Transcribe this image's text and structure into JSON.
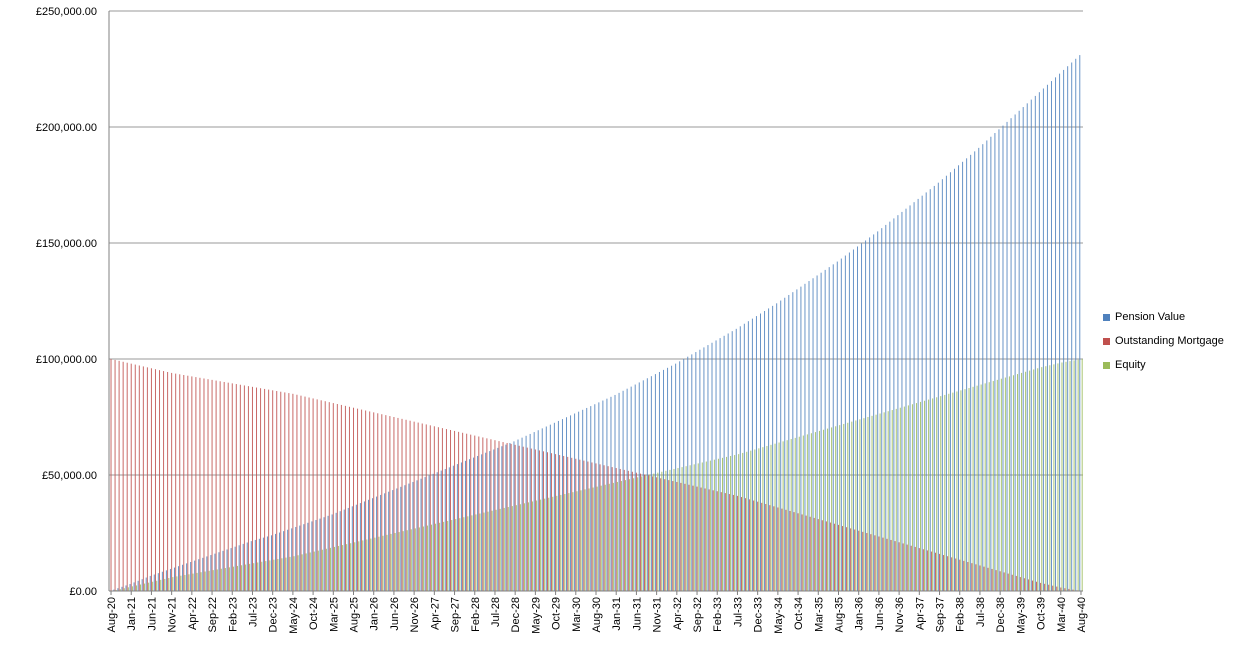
{
  "chart_data": {
    "type": "bar",
    "title": "",
    "xlabel": "",
    "ylabel": "",
    "ylim": [
      0,
      250000
    ],
    "yticks": [
      "£0.00",
      "£50,000.00",
      "£100,000.00",
      "£150,000.00",
      "£200,000.00",
      "£250,000.00"
    ],
    "grid": true,
    "legend_position": "right",
    "start_month": "2020-08",
    "end_month": "2040-08",
    "x_tick_labels": [
      "Aug-20",
      "Jan-21",
      "Jun-21",
      "Nov-21",
      "Apr-22",
      "Sep-22",
      "Feb-23",
      "Jul-23",
      "Dec-23",
      "May-24",
      "Oct-24",
      "Mar-25",
      "Aug-25",
      "Jan-26",
      "Jun-26",
      "Nov-26",
      "Apr-27",
      "Sep-27",
      "Feb-28",
      "Jul-28",
      "Dec-28",
      "May-29",
      "Oct-29",
      "Mar-30",
      "Aug-30",
      "Jan-31",
      "Jun-31",
      "Nov-31",
      "Apr-32",
      "Sep-32",
      "Feb-33",
      "Jul-33",
      "Dec-33",
      "May-34",
      "Oct-34",
      "Mar-35",
      "Aug-35",
      "Jan-36",
      "Jun-36",
      "Nov-36",
      "Apr-37",
      "Sep-37",
      "Feb-38",
      "Jul-38",
      "Dec-38",
      "May-39",
      "Oct-39",
      "Mar-40",
      "Aug-40"
    ],
    "series": [
      {
        "name": "Pension Value",
        "color": "#4F81BD",
        "points": [
          [
            "Aug-20",
            0
          ],
          [
            "Jan-21",
            3000
          ],
          [
            "Jun-21",
            6500
          ],
          [
            "Nov-21",
            9500
          ],
          [
            "Apr-22",
            12500
          ],
          [
            "Sep-22",
            15500
          ],
          [
            "Feb-23",
            18500
          ],
          [
            "Jul-23",
            21500
          ],
          [
            "Dec-23",
            24000
          ],
          [
            "May-24",
            27000
          ],
          [
            "Oct-24",
            30000
          ],
          [
            "Mar-25",
            33000
          ],
          [
            "Aug-25",
            36500
          ],
          [
            "Jan-26",
            40000
          ],
          [
            "Jun-26",
            43500
          ],
          [
            "Nov-26",
            47000
          ],
          [
            "Apr-27",
            50500
          ],
          [
            "Sep-27",
            54000
          ],
          [
            "Feb-28",
            57500
          ],
          [
            "Jul-28",
            61000
          ],
          [
            "Dec-28",
            64500
          ],
          [
            "May-29",
            68500
          ],
          [
            "Oct-29",
            72500
          ],
          [
            "Mar-30",
            76500
          ],
          [
            "Aug-30",
            80500
          ],
          [
            "Jan-31",
            84500
          ],
          [
            "Jun-31",
            89000
          ],
          [
            "Nov-31",
            93500
          ],
          [
            "Apr-32",
            98000
          ],
          [
            "Sep-32",
            103000
          ],
          [
            "Feb-33",
            108000
          ],
          [
            "Jul-33",
            113000
          ],
          [
            "Dec-33",
            118500
          ],
          [
            "May-34",
            124000
          ],
          [
            "Oct-34",
            130000
          ],
          [
            "Mar-35",
            136000
          ],
          [
            "Aug-35",
            142000
          ],
          [
            "Jan-36",
            148500
          ],
          [
            "Jun-36",
            155000
          ],
          [
            "Nov-36",
            162000
          ],
          [
            "Apr-37",
            169000
          ],
          [
            "Sep-37",
            176000
          ],
          [
            "Feb-38",
            183500
          ],
          [
            "Jul-38",
            191000
          ],
          [
            "Dec-38",
            199000
          ],
          [
            "May-39",
            207000
          ],
          [
            "Oct-39",
            215000
          ],
          [
            "Mar-40",
            223000
          ],
          [
            "Aug-40",
            231000
          ]
        ]
      },
      {
        "name": "Outstanding Mortgage",
        "color": "#C0504D",
        "points": [
          [
            "Aug-20",
            100000
          ],
          [
            "Jan-21",
            98000
          ],
          [
            "Jun-21",
            96000
          ],
          [
            "Nov-21",
            94000
          ],
          [
            "Apr-22",
            92500
          ],
          [
            "Sep-22",
            91000
          ],
          [
            "Feb-23",
            89500
          ],
          [
            "Jul-23",
            88000
          ],
          [
            "Dec-23",
            86500
          ],
          [
            "May-24",
            85000
          ],
          [
            "Oct-24",
            83000
          ],
          [
            "Mar-25",
            81000
          ],
          [
            "Aug-25",
            79000
          ],
          [
            "Jan-26",
            77000
          ],
          [
            "Jun-26",
            75000
          ],
          [
            "Nov-26",
            73000
          ],
          [
            "Apr-27",
            71000
          ],
          [
            "Sep-27",
            69000
          ],
          [
            "Feb-28",
            67000
          ],
          [
            "Jul-28",
            65000
          ],
          [
            "Dec-28",
            63000
          ],
          [
            "May-29",
            61000
          ],
          [
            "Oct-29",
            59000
          ],
          [
            "Mar-30",
            57000
          ],
          [
            "Aug-30",
            55000
          ],
          [
            "Jan-31",
            53000
          ],
          [
            "Jun-31",
            51000
          ],
          [
            "Nov-31",
            49000
          ],
          [
            "Apr-32",
            47000
          ],
          [
            "Sep-32",
            45000
          ],
          [
            "Feb-33",
            43000
          ],
          [
            "Jul-33",
            41000
          ],
          [
            "Dec-33",
            38500
          ],
          [
            "May-34",
            36000
          ],
          [
            "Oct-34",
            33500
          ],
          [
            "Mar-35",
            31000
          ],
          [
            "Aug-35",
            28500
          ],
          [
            "Jan-36",
            26000
          ],
          [
            "Jun-36",
            23500
          ],
          [
            "Nov-36",
            21000
          ],
          [
            "Apr-37",
            18500
          ],
          [
            "Sep-37",
            16000
          ],
          [
            "Feb-38",
            13500
          ],
          [
            "Jul-38",
            11000
          ],
          [
            "Dec-38",
            8500
          ],
          [
            "May-39",
            6000
          ],
          [
            "Oct-39",
            3500
          ],
          [
            "Mar-40",
            1500
          ],
          [
            "Aug-40",
            0
          ]
        ]
      },
      {
        "name": "Equity",
        "color": "#9BBB59",
        "points": [
          [
            "Aug-20",
            0
          ],
          [
            "Jan-21",
            2000
          ],
          [
            "Jun-21",
            4000
          ],
          [
            "Nov-21",
            6000
          ],
          [
            "Apr-22",
            7500
          ],
          [
            "Sep-22",
            9000
          ],
          [
            "Feb-23",
            10500
          ],
          [
            "Jul-23",
            12000
          ],
          [
            "Dec-23",
            13500
          ],
          [
            "May-24",
            15000
          ],
          [
            "Oct-24",
            17000
          ],
          [
            "Mar-25",
            19000
          ],
          [
            "Aug-25",
            21000
          ],
          [
            "Jan-26",
            23000
          ],
          [
            "Jun-26",
            25000
          ],
          [
            "Nov-26",
            27000
          ],
          [
            "Apr-27",
            29000
          ],
          [
            "Sep-27",
            31000
          ],
          [
            "Feb-28",
            33000
          ],
          [
            "Jul-28",
            35000
          ],
          [
            "Dec-28",
            37000
          ],
          [
            "May-29",
            39000
          ],
          [
            "Oct-29",
            41000
          ],
          [
            "Mar-30",
            43000
          ],
          [
            "Aug-30",
            45000
          ],
          [
            "Jan-31",
            47000
          ],
          [
            "Jun-31",
            49000
          ],
          [
            "Nov-31",
            51000
          ],
          [
            "Apr-32",
            53000
          ],
          [
            "Sep-32",
            55000
          ],
          [
            "Feb-33",
            57000
          ],
          [
            "Jul-33",
            59000
          ],
          [
            "Dec-33",
            61500
          ],
          [
            "May-34",
            64000
          ],
          [
            "Oct-34",
            66500
          ],
          [
            "Mar-35",
            69000
          ],
          [
            "Aug-35",
            71500
          ],
          [
            "Jan-36",
            74000
          ],
          [
            "Jun-36",
            76500
          ],
          [
            "Nov-36",
            79000
          ],
          [
            "Apr-37",
            81500
          ],
          [
            "Sep-37",
            84000
          ],
          [
            "Feb-38",
            86500
          ],
          [
            "Jul-38",
            89000
          ],
          [
            "Dec-38",
            91500
          ],
          [
            "May-39",
            94000
          ],
          [
            "Oct-39",
            96500
          ],
          [
            "Mar-40",
            98500
          ],
          [
            "Aug-40",
            100000
          ]
        ]
      }
    ]
  }
}
